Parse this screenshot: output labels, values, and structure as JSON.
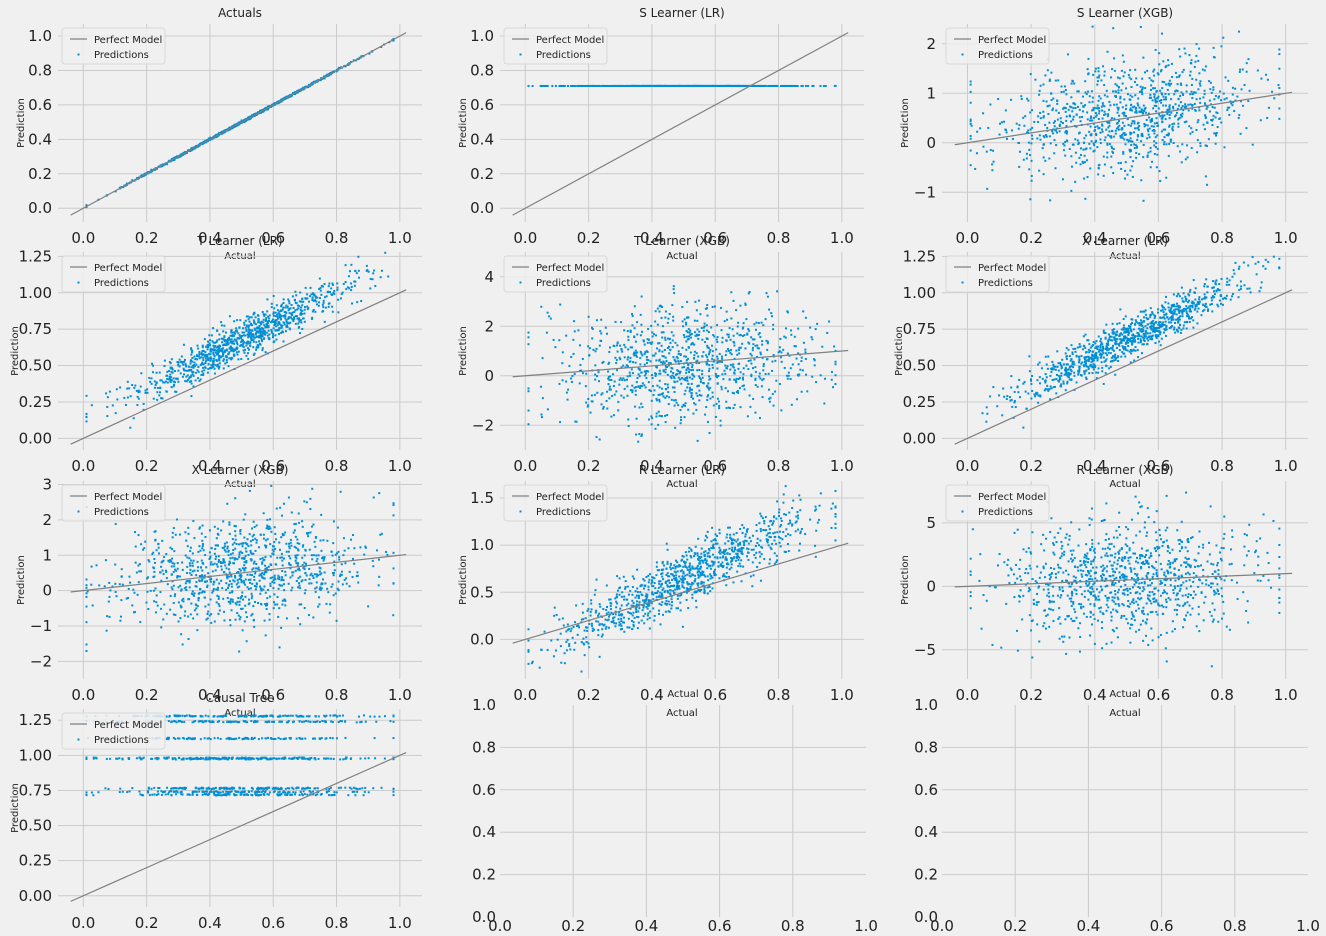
{
  "chart_data": [
    {
      "type": "scatter",
      "title": "Actuals",
      "xlabel": "Actual",
      "ylabel": "Prediction",
      "xlim": [
        -0.08,
        1.07
      ],
      "ylim": [
        -0.08,
        1.07
      ],
      "yticks": [
        "0.0",
        "0.2",
        "0.4",
        "0.6",
        "0.8",
        "1.0"
      ],
      "ytick_values": [
        0,
        0.2,
        0.4,
        0.6,
        0.8,
        1.0
      ],
      "xticks": [
        "0.0",
        "0.2",
        "0.4",
        "0.6",
        "0.8",
        "1.0"
      ],
      "xtick_values": [
        0,
        0.2,
        0.4,
        0.6,
        0.8,
        1.0
      ],
      "legend": [
        "Perfect Model",
        "Predictions"
      ],
      "legend_position": "top-left",
      "grid": true,
      "perfect_line": [
        [
          -0.04,
          -0.04
        ],
        [
          1.02,
          1.02
        ]
      ],
      "points_model": {
        "n": 1000,
        "x_mean": 0.5,
        "x_sd": 0.18,
        "x_range": [
          0.01,
          0.98
        ],
        "slope": 1.0,
        "intercept": 0.0,
        "noise_sd": 0.003
      }
    },
    {
      "type": "scatter",
      "title": "S Learner (LR)",
      "xlabel": "Actual",
      "ylabel": "Prediction",
      "xlim": [
        -0.08,
        1.07
      ],
      "ylim": [
        -0.08,
        1.07
      ],
      "yticks": [
        "0.0",
        "0.2",
        "0.4",
        "0.6",
        "0.8",
        "1.0"
      ],
      "ytick_values": [
        0,
        0.2,
        0.4,
        0.6,
        0.8,
        1.0
      ],
      "xticks": [
        "0.0",
        "0.2",
        "0.4",
        "0.6",
        "0.8",
        "1.0"
      ],
      "xtick_values": [
        0,
        0.2,
        0.4,
        0.6,
        0.8,
        1.0
      ],
      "legend": [
        "Perfect Model",
        "Predictions"
      ],
      "legend_position": "top-left",
      "grid": true,
      "perfect_line": [
        [
          -0.04,
          -0.04
        ],
        [
          1.02,
          1.02
        ]
      ],
      "points_model": {
        "n": 1000,
        "x_mean": 0.5,
        "x_sd": 0.18,
        "x_range": [
          0.01,
          0.98
        ],
        "slope": 0.0,
        "intercept": 0.71,
        "noise_sd": 0.0
      }
    },
    {
      "type": "scatter",
      "title": "S Learner (XGB)",
      "xlabel": "Actual",
      "ylabel": "Prediction",
      "xlim": [
        -0.08,
        1.07
      ],
      "ylim": [
        -1.6,
        2.4
      ],
      "yticks": [
        "−1",
        "0",
        "1",
        "2"
      ],
      "ytick_values": [
        -1,
        0,
        1,
        2
      ],
      "xticks": [
        "0.0",
        "0.2",
        "0.4",
        "0.6",
        "0.8",
        "1.0"
      ],
      "xtick_values": [
        0,
        0.2,
        0.4,
        0.6,
        0.8,
        1.0
      ],
      "legend": [
        "Perfect Model",
        "Predictions"
      ],
      "legend_position": "top-left",
      "grid": true,
      "perfect_line": [
        [
          -0.04,
          -0.04
        ],
        [
          1.02,
          1.02
        ]
      ],
      "points_model": {
        "n": 1000,
        "x_mean": 0.5,
        "x_sd": 0.2,
        "x_range": [
          0.01,
          0.98
        ],
        "slope": 1.0,
        "intercept": 0.05,
        "noise_sd": 0.55
      }
    },
    {
      "type": "scatter",
      "title": "T Learner (LR)",
      "xlabel": "Actual",
      "ylabel": "Prediction",
      "xlim": [
        -0.08,
        1.07
      ],
      "ylim": [
        -0.08,
        1.28
      ],
      "yticks": [
        "0.00",
        "0.25",
        "0.50",
        "0.75",
        "1.00",
        "1.25"
      ],
      "ytick_values": [
        0,
        0.25,
        0.5,
        0.75,
        1.0,
        1.25
      ],
      "xticks": [
        "0.0",
        "0.2",
        "0.4",
        "0.6",
        "0.8",
        "1.0"
      ],
      "xtick_values": [
        0,
        0.2,
        0.4,
        0.6,
        0.8,
        1.0
      ],
      "legend": [
        "Perfect Model",
        "Predictions"
      ],
      "legend_position": "top-left",
      "grid": true,
      "perfect_line": [
        [
          -0.04,
          -0.04
        ],
        [
          1.02,
          1.02
        ]
      ],
      "points_model": {
        "n": 1000,
        "x_mean": 0.5,
        "x_sd": 0.18,
        "x_range": [
          0.01,
          0.98
        ],
        "slope": 1.1,
        "intercept": 0.13,
        "noise_sd": 0.07
      }
    },
    {
      "type": "scatter",
      "title": "T Learner (XGB)",
      "xlabel": "Actual",
      "ylabel": "Prediction",
      "xlim": [
        -0.08,
        1.07
      ],
      "ylim": [
        -3.0,
        5.0
      ],
      "yticks": [
        "−2",
        "0",
        "2",
        "4"
      ],
      "ytick_values": [
        -2,
        0,
        2,
        4
      ],
      "xticks": [
        "0.0",
        "0.2",
        "0.4",
        "0.6",
        "0.8",
        "1.0"
      ],
      "xtick_values": [
        0,
        0.2,
        0.4,
        0.6,
        0.8,
        1.0
      ],
      "legend": [
        "Perfect Model",
        "Predictions"
      ],
      "legend_position": "top-left",
      "grid": true,
      "perfect_line": [
        [
          -0.04,
          -0.04
        ],
        [
          1.02,
          1.02
        ]
      ],
      "points_model": {
        "n": 1000,
        "x_mean": 0.5,
        "x_sd": 0.2,
        "x_range": [
          0.01,
          0.98
        ],
        "slope": 1.0,
        "intercept": 0.05,
        "noise_sd": 1.15
      }
    },
    {
      "type": "scatter",
      "title": "X Learner (LR)",
      "xlabel": "Actual",
      "ylabel": "Prediction",
      "xlim": [
        -0.08,
        1.07
      ],
      "ylim": [
        -0.08,
        1.28
      ],
      "yticks": [
        "0.00",
        "0.25",
        "0.50",
        "0.75",
        "1.00",
        "1.25"
      ],
      "ytick_values": [
        0,
        0.25,
        0.5,
        0.75,
        1.0,
        1.25
      ],
      "xticks": [
        "0.0",
        "0.2",
        "0.4",
        "0.6",
        "0.8",
        "1.0"
      ],
      "xtick_values": [
        0,
        0.2,
        0.4,
        0.6,
        0.8,
        1.0
      ],
      "legend": [
        "Perfect Model",
        "Predictions"
      ],
      "legend_position": "top-left",
      "grid": true,
      "perfect_line": [
        [
          -0.04,
          -0.04
        ],
        [
          1.02,
          1.02
        ]
      ],
      "points_model": {
        "n": 1000,
        "x_mean": 0.5,
        "x_sd": 0.18,
        "x_range": [
          0.01,
          0.98
        ],
        "slope": 1.1,
        "intercept": 0.13,
        "noise_sd": 0.07
      }
    },
    {
      "type": "scatter",
      "title": "X Learner (XGB)",
      "xlabel": "Actual",
      "ylabel": "Prediction",
      "xlim": [
        -0.08,
        1.07
      ],
      "ylim": [
        -2.5,
        3.1
      ],
      "yticks": [
        "−2",
        "−1",
        "0",
        "1",
        "2",
        "3"
      ],
      "ytick_values": [
        -2,
        -1,
        0,
        1,
        2,
        3
      ],
      "xticks": [
        "0.0",
        "0.2",
        "0.4",
        "0.6",
        "0.8",
        "1.0"
      ],
      "xtick_values": [
        0,
        0.2,
        0.4,
        0.6,
        0.8,
        1.0
      ],
      "legend": [
        "Perfect Model",
        "Predictions"
      ],
      "legend_position": "top-left",
      "grid": true,
      "perfect_line": [
        [
          -0.04,
          -0.04
        ],
        [
          1.02,
          1.02
        ]
      ],
      "points_model": {
        "n": 1000,
        "x_mean": 0.5,
        "x_sd": 0.2,
        "x_range": [
          0.01,
          0.98
        ],
        "slope": 1.0,
        "intercept": 0.05,
        "noise_sd": 0.75
      }
    },
    {
      "type": "scatter",
      "title": "R Learner (LR)",
      "xlabel": "Actual",
      "ylabel": "Prediction",
      "xlim": [
        -0.08,
        1.07
      ],
      "ylim": [
        -0.42,
        1.68
      ],
      "yticks": [
        "0.0",
        "0.5",
        "1.0",
        "1.5"
      ],
      "ytick_values": [
        0,
        0.5,
        1.0,
        1.5
      ],
      "xticks": [
        "0.0",
        "0.2",
        "0.4",
        "0.6",
        "0.8",
        "1.0"
      ],
      "xtick_values": [
        0,
        0.2,
        0.4,
        0.6,
        0.8,
        1.0
      ],
      "legend": [
        "Perfect Model",
        "Predictions"
      ],
      "legend_position": "top-left",
      "grid": true,
      "perfect_line": [
        [
          -0.04,
          -0.04
        ],
        [
          1.02,
          1.02
        ]
      ],
      "points_model": {
        "n": 1000,
        "x_mean": 0.5,
        "x_sd": 0.2,
        "x_range": [
          0.01,
          0.98
        ],
        "slope": 1.65,
        "intercept": -0.18,
        "noise_sd": 0.15
      }
    },
    {
      "type": "scatter",
      "title": "R Learner (XGB)",
      "xlabel": "Actual",
      "ylabel": "Prediction",
      "xlim": [
        -0.08,
        1.07
      ],
      "ylim": [
        -7.3,
        8.3
      ],
      "yticks": [
        "−5",
        "0",
        "5"
      ],
      "ytick_values": [
        -5,
        0,
        5
      ],
      "xticks": [
        "0.0",
        "0.2",
        "0.4",
        "0.6",
        "0.8",
        "1.0"
      ],
      "xtick_values": [
        0,
        0.2,
        0.4,
        0.6,
        0.8,
        1.0
      ],
      "legend": [
        "Perfect Model",
        "Predictions"
      ],
      "legend_position": "top-left",
      "grid": true,
      "perfect_line": [
        [
          -0.04,
          -0.04
        ],
        [
          1.02,
          1.02
        ]
      ],
      "points_model": {
        "n": 1000,
        "x_mean": 0.5,
        "x_sd": 0.2,
        "x_range": [
          0.01,
          0.98
        ],
        "slope": 1.0,
        "intercept": 0.05,
        "noise_sd": 2.2
      }
    },
    {
      "type": "scatter",
      "title": "Causal Tree",
      "xlabel": "Actual",
      "ylabel": "Prediction",
      "xlim": [
        -0.08,
        1.07
      ],
      "ylim": [
        -0.08,
        1.33
      ],
      "yticks": [
        "0.00",
        "0.25",
        "0.50",
        "0.75",
        "1.00",
        "1.25"
      ],
      "ytick_values": [
        0,
        0.25,
        0.5,
        0.75,
        1.0,
        1.25
      ],
      "xticks": [
        "0.0",
        "0.2",
        "0.4",
        "0.6",
        "0.8",
        "1.0"
      ],
      "xtick_values": [
        0,
        0.2,
        0.4,
        0.6,
        0.8,
        1.0
      ],
      "legend": [
        "Perfect Model",
        "Predictions"
      ],
      "legend_position": "top-left",
      "grid": true,
      "perfect_line": [
        [
          -0.04,
          -0.04
        ],
        [
          1.02,
          1.02
        ]
      ],
      "points_model": {
        "n": 1000,
        "x_mean": 0.5,
        "x_sd": 0.2,
        "x_range": [
          0.01,
          0.98
        ],
        "levels": [
          0.72,
          0.74,
          0.765,
          0.975,
          0.98,
          1.12,
          1.24,
          1.28
        ]
      }
    },
    {
      "type": "empty",
      "title": "",
      "xlabel": "",
      "ylabel": "",
      "xlim": [
        0,
        1
      ],
      "ylim": [
        0,
        1
      ],
      "yticks": [
        "0.0",
        "0.2",
        "0.4",
        "0.6",
        "0.8",
        "1.0"
      ],
      "ytick_values": [
        0,
        0.2,
        0.4,
        0.6,
        0.8,
        1.0
      ],
      "xticks": [
        "0.0",
        "0.2",
        "0.4",
        "0.6",
        "0.8",
        "1.0"
      ],
      "xtick_values": [
        0,
        0.2,
        0.4,
        0.6,
        0.8,
        1.0
      ],
      "legend": [],
      "grid": true
    },
    {
      "type": "empty",
      "title": "",
      "xlabel": "",
      "ylabel": "",
      "xlim": [
        0,
        1
      ],
      "ylim": [
        0,
        1
      ],
      "yticks": [
        "0.0",
        "0.2",
        "0.4",
        "0.6",
        "0.8",
        "1.0"
      ],
      "ytick_values": [
        0,
        0.2,
        0.4,
        0.6,
        0.8,
        1.0
      ],
      "xticks": [
        "0.0",
        "0.2",
        "0.4",
        "0.6",
        "0.8",
        "1.0"
      ],
      "xtick_values": [
        0,
        0.2,
        0.4,
        0.6,
        0.8,
        1.0
      ],
      "legend": [],
      "grid": true
    }
  ],
  "colors": {
    "background": "#f0f0f0",
    "grid": "#cbcbcb",
    "points": "#008fd5",
    "perfect_line": "#808080",
    "text": "#222222",
    "legend_border": "#d8d8d8"
  }
}
